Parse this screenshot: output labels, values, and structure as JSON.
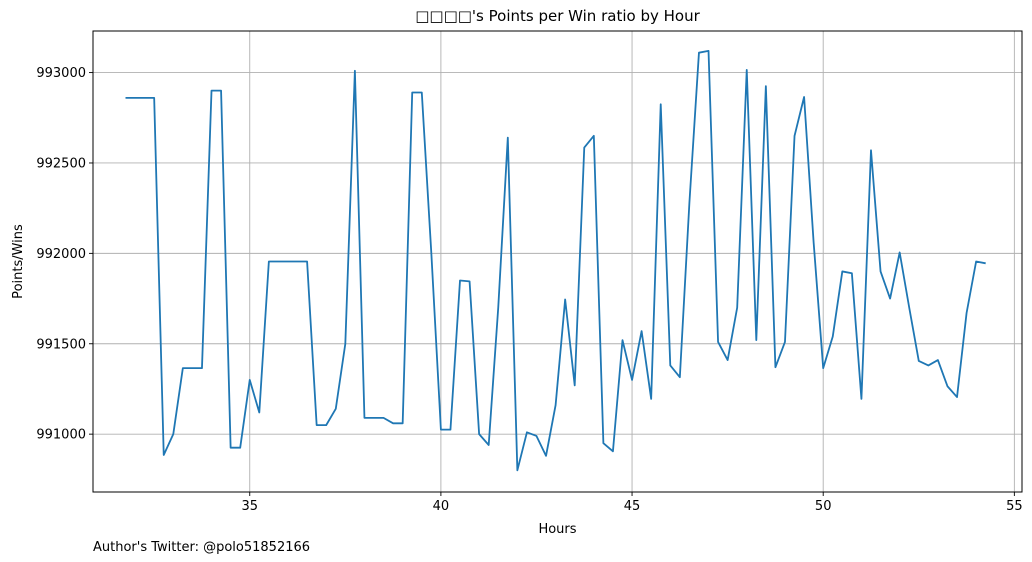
{
  "chart_data": {
    "type": "line",
    "title": "□□□□'s Points per Win ratio by Hour",
    "xlabel": "Hours",
    "ylabel": "Points/Wins",
    "xlim": [
      30.9,
      55.2
    ],
    "ylim": [
      990680,
      993230
    ],
    "xticks": [
      35,
      40,
      45,
      50,
      55
    ],
    "yticks": [
      991000,
      991500,
      992000,
      992500,
      993000
    ],
    "grid": true,
    "color": "#1f77b4",
    "series": [
      {
        "x": [
          31.75,
          32.0,
          32.25,
          32.5,
          32.75,
          33.0,
          33.25,
          33.5,
          33.75,
          34.0,
          34.25,
          34.5,
          34.75,
          35.0,
          35.25,
          35.5,
          35.75,
          36.0,
          36.25,
          36.5,
          36.75,
          37.0,
          37.25,
          37.5,
          37.75,
          38.0,
          38.25,
          38.5,
          38.75,
          39.0,
          39.25,
          39.5,
          39.75,
          40.0,
          40.25,
          40.5,
          40.75,
          41.0,
          41.25,
          41.5,
          41.75,
          42.0,
          42.25,
          42.5,
          42.75,
          43.0,
          43.25,
          43.5,
          43.75,
          44.0,
          44.25,
          44.5,
          44.75,
          45.0,
          45.25,
          45.5,
          45.75,
          46.0,
          46.25,
          46.5,
          46.75,
          47.0,
          47.25,
          47.5,
          47.75,
          48.0,
          48.25,
          48.5,
          48.75,
          49.0,
          49.25,
          49.5,
          49.75,
          50.0,
          50.25,
          50.5,
          50.75,
          51.0,
          51.25,
          51.5,
          51.75,
          52.0,
          52.25,
          52.5,
          52.75,
          53.0,
          53.25,
          53.5,
          53.75,
          54.0,
          54.25
        ],
        "y": [
          992860,
          992860,
          992860,
          992860,
          990885,
          991000,
          991365,
          991365,
          991365,
          992900,
          992900,
          990925,
          990925,
          991300,
          991120,
          991955,
          991955,
          991955,
          991955,
          991955,
          991050,
          991050,
          991140,
          991500,
          993010,
          991090,
          991090,
          991090,
          991060,
          991060,
          992890,
          992890,
          992000,
          991025,
          991025,
          991850,
          991845,
          991000,
          990940,
          991700,
          992640,
          990800,
          991010,
          990990,
          990880,
          991160,
          991745,
          991270,
          992585,
          992650,
          990950,
          990905,
          991520,
          991300,
          991570,
          991195,
          992825,
          991380,
          991315,
          992280,
          993110,
          993120,
          991510,
          991410,
          991700,
          993015,
          991520,
          992925,
          991370,
          991510,
          992650,
          992865,
          992060,
          991365,
          991540,
          991900,
          991890,
          991195,
          992570,
          991900,
          991750,
          992005,
          991700,
          991405,
          991380,
          991410,
          991265,
          991205,
          991670,
          991955,
          991945
        ]
      }
    ]
  },
  "footer": {
    "text": "Author's Twitter: @polo51852166"
  }
}
